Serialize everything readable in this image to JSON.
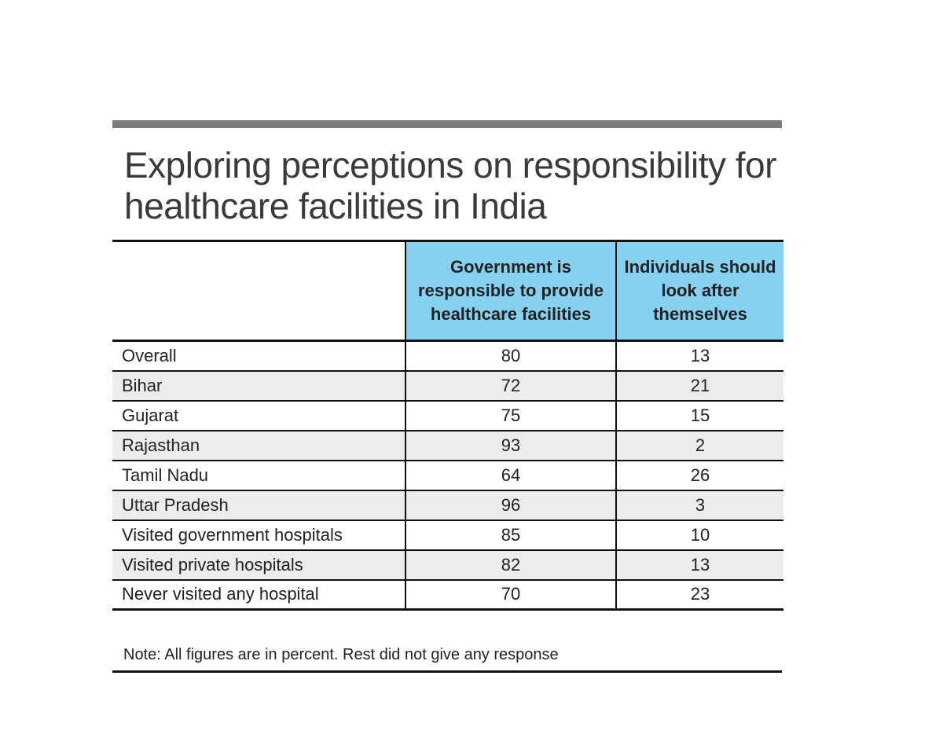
{
  "chart_data": {
    "type": "table",
    "title": "Exploring perceptions on responsibility for healthcare facilities in India",
    "columns": [
      "",
      "Government is responsible to provide healthcare facilities",
      "Individuals should look after themselves"
    ],
    "rows": [
      {
        "label": "Overall",
        "government": "80",
        "individuals": "13"
      },
      {
        "label": "Bihar",
        "government": "72",
        "individuals": "21"
      },
      {
        "label": "Gujarat",
        "government": "75",
        "individuals": "15"
      },
      {
        "label": "Rajasthan",
        "government": "93",
        "individuals": "2"
      },
      {
        "label": "Tamil Nadu",
        "government": "64",
        "individuals": "26"
      },
      {
        "label": "Uttar Pradesh",
        "government": "96",
        "individuals": "3"
      },
      {
        "label": "Visited government hospitals",
        "government": "85",
        "individuals": "10"
      },
      {
        "label": "Visited private hospitals",
        "government": "82",
        "individuals": "13"
      },
      {
        "label": "Never visited any hospital",
        "government": "70",
        "individuals": "23"
      }
    ],
    "note": "Note: All figures are in percent. Rest did not give any response",
    "header_color": "#86d0f0",
    "stripe_color": "#ececec"
  }
}
